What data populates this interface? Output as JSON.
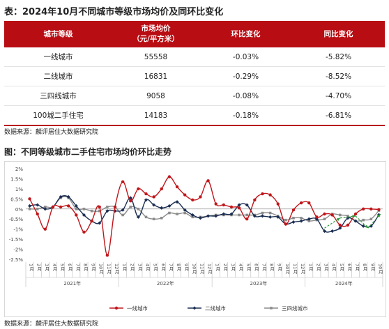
{
  "title": "表：2024年10月不同城市等级市场均价及同环比变化",
  "table": {
    "headers": [
      [
        "城市等级"
      ],
      [
        "市场均价",
        "（元/平方米）"
      ],
      [
        "环比变化"
      ],
      [
        "同比变化"
      ]
    ],
    "rows": [
      [
        "一线城市",
        "55558",
        "-0.03%",
        "-5.82%"
      ],
      [
        "二线城市",
        "16831",
        "-0.29%",
        "-8.52%"
      ],
      [
        "三四线城市",
        "9058",
        "-0.08%",
        "-4.70%"
      ],
      [
        "100城二手住宅",
        "14183",
        "-0.18%",
        "-6.81%"
      ]
    ]
  },
  "table_source": "数据来源：麟评居住大数据研究院",
  "chart_title": "图：不同等级城市二手住宅市场均价环比走势",
  "chart_source": "数据来源：麟评居住大数据研究院",
  "chart_data": {
    "type": "line",
    "y_ticks": [
      "2%",
      "1.5%",
      "1%",
      "0.5%",
      "0%",
      "-0.5%",
      "-1%",
      "-1.5%",
      "-2%",
      "-2.5%"
    ],
    "ylim": [
      -2.5,
      2
    ],
    "x_tick_labels": [
      "1月",
      "2月",
      "3月",
      "4月",
      "5月",
      "6月",
      "7月",
      "8月",
      "9月",
      "10月",
      "11月",
      "12月",
      "1月",
      "2月",
      "3月",
      "4月",
      "5月",
      "6月",
      "7月",
      "8月",
      "9月",
      "10月",
      "11月",
      "12月",
      "1月",
      "2月",
      "3月",
      "4月",
      "5月",
      "6月",
      "7月",
      "8月",
      "9月",
      "10月",
      "11月",
      "12月",
      "1月",
      "2月",
      "3月",
      "4月",
      "5月",
      "6月",
      "7月",
      "8月",
      "9月",
      "10月"
    ],
    "year_labels": [
      "2021年",
      "2022年",
      "2023年",
      "2024年"
    ],
    "year_spans": [
      [
        0,
        11
      ],
      [
        12,
        23
      ],
      [
        24,
        35
      ],
      [
        36,
        45
      ]
    ],
    "series": [
      {
        "name": "一线城市",
        "color": "#c0161b",
        "marker": "circle",
        "values": [
          0.5,
          -0.25,
          -1.0,
          0.1,
          0.1,
          0.15,
          -0.3,
          -1.15,
          -0.6,
          0.1,
          -2.3,
          0.1,
          1.35,
          0.4,
          1.0,
          0.75,
          0.6,
          1.0,
          1.6,
          1.1,
          0.7,
          0.45,
          0.6,
          1.4,
          0.25,
          0.2,
          0.1,
          0.05,
          -0.5,
          0.45,
          0.75,
          0.7,
          0.25,
          -0.75,
          -0.05,
          0.3,
          0.3,
          -0.4,
          -0.25,
          -0.3,
          -0.8,
          -0.8,
          -0.25,
          0.0,
          0.0,
          -0.03
        ]
      },
      {
        "name": "二线城市",
        "color": "#1b2e52",
        "marker": "diamond",
        "values": [
          0.15,
          0.2,
          0.0,
          0.1,
          0.6,
          0.6,
          0.15,
          -0.3,
          -0.6,
          -0.7,
          -0.1,
          -0.1,
          -0.05,
          0.55,
          -0.4,
          0.45,
          0.2,
          0.05,
          0.15,
          0.35,
          -0.05,
          -0.3,
          -0.45,
          -0.35,
          -0.35,
          -0.25,
          -0.25,
          0.2,
          0.2,
          -0.35,
          -0.35,
          -0.4,
          -0.4,
          -0.75,
          -0.65,
          -0.6,
          -0.5,
          -0.5,
          -1.1,
          -1.1,
          -0.95,
          -0.45,
          -0.6,
          -0.85,
          -0.85,
          -0.29
        ]
      },
      {
        "name": "三四线城市",
        "color": "#8c8c8c",
        "marker": "square",
        "values": [
          0.0,
          0.0,
          0.1,
          0.1,
          0.55,
          0.55,
          0.0,
          0.0,
          -0.1,
          -0.1,
          0.1,
          0.1,
          -0.3,
          0.1,
          0.0,
          -0.4,
          -0.5,
          -0.45,
          -0.2,
          -0.25,
          -0.2,
          -0.4,
          -0.4,
          -0.35,
          -0.3,
          -0.3,
          -0.3,
          -0.3,
          -0.3,
          -0.3,
          -0.2,
          -0.2,
          -0.35,
          -0.55,
          -0.45,
          -0.45,
          -0.6,
          -0.55,
          -0.5,
          -0.25,
          -0.3,
          -0.35,
          -0.6,
          -0.55,
          -0.5,
          -0.08
        ]
      }
    ]
  }
}
